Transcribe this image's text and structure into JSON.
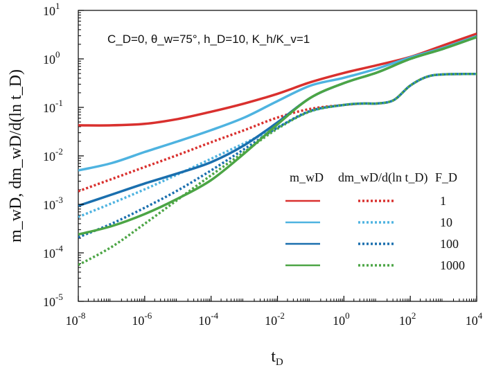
{
  "chart_data": {
    "type": "line",
    "xscale": "log",
    "yscale": "log",
    "xlim_exp": [
      -8,
      4
    ],
    "ylim_exp": [
      -5,
      1
    ],
    "x_ticks": [
      {
        "base": "10",
        "exp": "-8"
      },
      {
        "base": "10",
        "exp": "-6"
      },
      {
        "base": "10",
        "exp": "-4"
      },
      {
        "base": "10",
        "exp": "-2"
      },
      {
        "base": "10",
        "exp": "0"
      },
      {
        "base": "10",
        "exp": "2"
      },
      {
        "base": "10",
        "exp": "4"
      }
    ],
    "y_ticks": [
      {
        "base": "10",
        "exp": "1"
      },
      {
        "base": "10",
        "exp": "0"
      },
      {
        "base": "10",
        "exp": "-1"
      },
      {
        "base": "10",
        "exp": "-2"
      },
      {
        "base": "10",
        "exp": "-3"
      },
      {
        "base": "10",
        "exp": "-4"
      },
      {
        "base": "10",
        "exp": "-5"
      }
    ],
    "xlabel": {
      "main": "t",
      "sub": "D"
    },
    "ylabel": "m_wD, dm_wD/d(ln t_D)",
    "annotation": "C_D=0, θ_w=75°, h_D=10, K_h/K_v=1",
    "legend": {
      "col_mwd": "m_wD",
      "col_deriv": "dm_wD/d(ln t_D)",
      "col_fd": "F_D"
    },
    "series": [
      {
        "name": "1",
        "fd_label": "1",
        "color": "#d9302e",
        "mwd": [
          [
            -8,
            -1.37
          ],
          [
            -7,
            -1.37
          ],
          [
            -6,
            -1.34
          ],
          [
            -5,
            -1.24
          ],
          [
            -4,
            -1.09
          ],
          [
            -3,
            -0.92
          ],
          [
            -2,
            -0.72
          ],
          [
            -1,
            -0.48
          ],
          [
            0,
            -0.29
          ],
          [
            1,
            -0.13
          ],
          [
            2,
            0.04
          ],
          [
            3,
            0.28
          ],
          [
            4,
            0.52
          ]
        ],
        "deriv": [
          [
            -8,
            -2.73
          ],
          [
            -7,
            -2.48
          ],
          [
            -6,
            -2.23
          ],
          [
            -5,
            -1.98
          ],
          [
            -4,
            -1.72
          ],
          [
            -3,
            -1.47
          ],
          [
            -2,
            -1.21
          ],
          [
            -1,
            -1.03
          ],
          [
            0,
            -0.95
          ],
          [
            0.6,
            -0.92
          ],
          [
            1,
            -0.92
          ],
          [
            1.5,
            -0.85
          ],
          [
            2,
            -0.55
          ],
          [
            2.5,
            -0.37
          ],
          [
            3,
            -0.32
          ],
          [
            4,
            -0.31
          ]
        ]
      },
      {
        "name": "10",
        "fd_label": "10",
        "color": "#4eb3e0",
        "mwd": [
          [
            -8,
            -2.3
          ],
          [
            -7,
            -2.15
          ],
          [
            -6,
            -1.92
          ],
          [
            -5,
            -1.7
          ],
          [
            -4,
            -1.47
          ],
          [
            -3,
            -1.21
          ],
          [
            -2,
            -0.87
          ],
          [
            -1,
            -0.55
          ],
          [
            0,
            -0.39
          ],
          [
            1,
            -0.2
          ],
          [
            2,
            0.03
          ],
          [
            3,
            0.23
          ],
          [
            4,
            0.47
          ]
        ],
        "deriv": [
          [
            -8,
            -3.26
          ],
          [
            -7,
            -2.98
          ],
          [
            -6,
            -2.69
          ],
          [
            -5,
            -2.38
          ],
          [
            -4,
            -2.06
          ],
          [
            -3,
            -1.74
          ],
          [
            -2,
            -1.41
          ],
          [
            -1,
            -1.08
          ],
          [
            0,
            -0.95
          ],
          [
            0.6,
            -0.92
          ],
          [
            1,
            -0.92
          ],
          [
            1.5,
            -0.85
          ],
          [
            2,
            -0.55
          ],
          [
            2.5,
            -0.37
          ],
          [
            3,
            -0.32
          ],
          [
            4,
            -0.31
          ]
        ]
      },
      {
        "name": "100",
        "fd_label": "100",
        "color": "#1a6fae",
        "mwd": [
          [
            -8,
            -3.03
          ],
          [
            -7,
            -2.8
          ],
          [
            -6,
            -2.57
          ],
          [
            -5,
            -2.36
          ],
          [
            -4,
            -2.13
          ],
          [
            -3,
            -1.78
          ],
          [
            -2,
            -1.31
          ],
          [
            -1,
            -0.8
          ],
          [
            0,
            -0.5
          ],
          [
            1,
            -0.28
          ],
          [
            2,
            0.0
          ],
          [
            3,
            0.21
          ],
          [
            4,
            0.45
          ]
        ],
        "deriv": [
          [
            -8,
            -3.68
          ],
          [
            -7,
            -3.4
          ],
          [
            -6,
            -3.07
          ],
          [
            -5,
            -2.71
          ],
          [
            -4,
            -2.3
          ],
          [
            -3,
            -1.86
          ],
          [
            -2,
            -1.42
          ],
          [
            -1,
            -1.07
          ],
          [
            0,
            -0.95
          ],
          [
            0.6,
            -0.92
          ],
          [
            1,
            -0.92
          ],
          [
            1.5,
            -0.85
          ],
          [
            2,
            -0.55
          ],
          [
            2.5,
            -0.37
          ],
          [
            3,
            -0.32
          ],
          [
            4,
            -0.31
          ]
        ]
      },
      {
        "name": "1000",
        "fd_label": "1000",
        "color": "#4ca545",
        "mwd": [
          [
            -8,
            -3.62
          ],
          [
            -7,
            -3.45
          ],
          [
            -6,
            -3.2
          ],
          [
            -5,
            -2.88
          ],
          [
            -4,
            -2.5
          ],
          [
            -3,
            -1.95
          ],
          [
            -2,
            -1.35
          ],
          [
            -1,
            -0.8
          ],
          [
            0,
            -0.5
          ],
          [
            1,
            -0.28
          ],
          [
            2,
            0.0
          ],
          [
            3,
            0.21
          ],
          [
            4,
            0.45
          ]
        ],
        "deriv": [
          [
            -8,
            -4.25
          ],
          [
            -7,
            -3.88
          ],
          [
            -6,
            -3.4
          ],
          [
            -5,
            -2.9
          ],
          [
            -4,
            -2.4
          ],
          [
            -3,
            -1.92
          ],
          [
            -2,
            -1.44
          ],
          [
            -1,
            -1.08
          ],
          [
            0,
            -0.95
          ],
          [
            0.6,
            -0.92
          ],
          [
            1,
            -0.92
          ],
          [
            1.5,
            -0.85
          ],
          [
            2,
            -0.55
          ],
          [
            2.5,
            -0.37
          ],
          [
            3,
            -0.32
          ],
          [
            4,
            -0.31
          ]
        ]
      }
    ]
  }
}
